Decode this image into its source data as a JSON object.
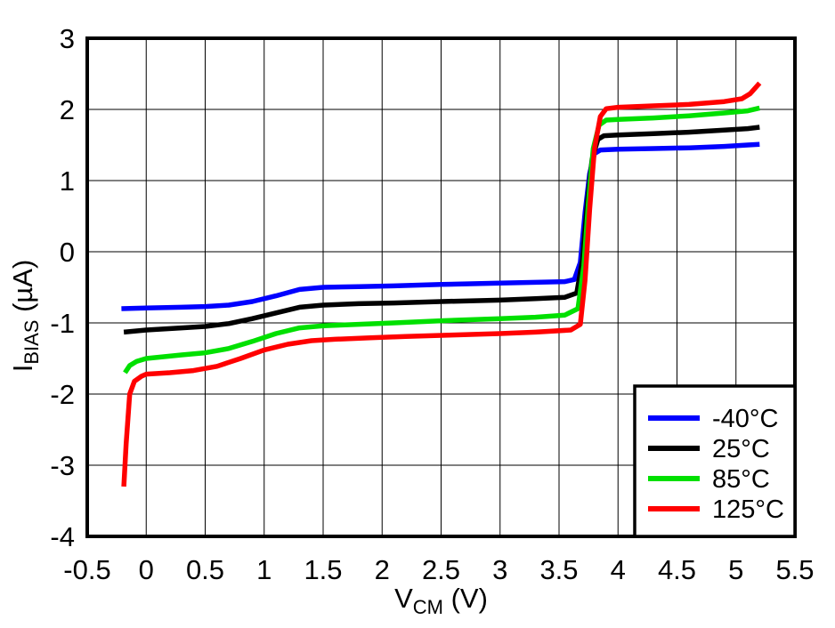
{
  "chart_data": {
    "type": "line",
    "title": "",
    "xlabel": {
      "pre": "V",
      "sub": "CM",
      "post": " (V)"
    },
    "ylabel": {
      "pre": "I",
      "sub": "BIAS",
      "post": " (µA)"
    },
    "xlim": [
      -0.5,
      5.5
    ],
    "ylim": [
      -4,
      3
    ],
    "x_ticks": [
      "-0.5",
      "0",
      "0.5",
      "1",
      "1.5",
      "2",
      "2.5",
      "3",
      "3.5",
      "4",
      "4.5",
      "5",
      "5.5"
    ],
    "y_ticks": [
      "3",
      "2",
      "1",
      "0",
      "-1",
      "-2",
      "-3",
      "-4"
    ],
    "grid": true,
    "legend_position": "bottom-right",
    "axis_color": "#000000",
    "grid_color": "#000000",
    "background_color": "#ffffff",
    "series": [
      {
        "name": "-40°C",
        "color": "#0000ff",
        "points": [
          [
            -0.21,
            -0.8
          ],
          [
            0,
            -0.79
          ],
          [
            0.3,
            -0.78
          ],
          [
            0.5,
            -0.77
          ],
          [
            0.7,
            -0.75
          ],
          [
            0.9,
            -0.7
          ],
          [
            1.1,
            -0.62
          ],
          [
            1.3,
            -0.53
          ],
          [
            1.5,
            -0.5
          ],
          [
            1.8,
            -0.49
          ],
          [
            2.1,
            -0.48
          ],
          [
            2.5,
            -0.46
          ],
          [
            3.0,
            -0.44
          ],
          [
            3.3,
            -0.43
          ],
          [
            3.55,
            -0.42
          ],
          [
            3.63,
            -0.39
          ],
          [
            3.68,
            -0.15
          ],
          [
            3.72,
            0.55
          ],
          [
            3.76,
            1.1
          ],
          [
            3.8,
            1.38
          ],
          [
            3.85,
            1.43
          ],
          [
            4.0,
            1.44
          ],
          [
            4.3,
            1.45
          ],
          [
            4.6,
            1.46
          ],
          [
            4.9,
            1.48
          ],
          [
            5.1,
            1.5
          ],
          [
            5.2,
            1.51
          ]
        ]
      },
      {
        "name": "25°C",
        "color": "#000000",
        "points": [
          [
            -0.19,
            -1.13
          ],
          [
            0,
            -1.1
          ],
          [
            0.3,
            -1.07
          ],
          [
            0.5,
            -1.05
          ],
          [
            0.7,
            -1.01
          ],
          [
            0.9,
            -0.94
          ],
          [
            1.1,
            -0.86
          ],
          [
            1.3,
            -0.78
          ],
          [
            1.5,
            -0.75
          ],
          [
            1.8,
            -0.73
          ],
          [
            2.1,
            -0.72
          ],
          [
            2.5,
            -0.7
          ],
          [
            3.0,
            -0.68
          ],
          [
            3.3,
            -0.66
          ],
          [
            3.55,
            -0.64
          ],
          [
            3.65,
            -0.58
          ],
          [
            3.7,
            -0.1
          ],
          [
            3.74,
            0.7
          ],
          [
            3.78,
            1.3
          ],
          [
            3.83,
            1.58
          ],
          [
            3.88,
            1.63
          ],
          [
            4.0,
            1.64
          ],
          [
            4.3,
            1.66
          ],
          [
            4.6,
            1.68
          ],
          [
            4.9,
            1.71
          ],
          [
            5.1,
            1.73
          ],
          [
            5.2,
            1.75
          ]
        ]
      },
      {
        "name": "85°C",
        "color": "#00e000",
        "points": [
          [
            -0.18,
            -1.7
          ],
          [
            -0.14,
            -1.6
          ],
          [
            -0.08,
            -1.54
          ],
          [
            0,
            -1.5
          ],
          [
            0.3,
            -1.45
          ],
          [
            0.5,
            -1.42
          ],
          [
            0.7,
            -1.36
          ],
          [
            0.9,
            -1.26
          ],
          [
            1.1,
            -1.15
          ],
          [
            1.3,
            -1.07
          ],
          [
            1.5,
            -1.04
          ],
          [
            1.8,
            -1.02
          ],
          [
            2.1,
            -1.0
          ],
          [
            2.5,
            -0.97
          ],
          [
            3.0,
            -0.94
          ],
          [
            3.3,
            -0.92
          ],
          [
            3.55,
            -0.89
          ],
          [
            3.66,
            -0.8
          ],
          [
            3.71,
            -0.2
          ],
          [
            3.75,
            0.7
          ],
          [
            3.79,
            1.45
          ],
          [
            3.84,
            1.78
          ],
          [
            3.9,
            1.85
          ],
          [
            4.0,
            1.86
          ],
          [
            4.3,
            1.88
          ],
          [
            4.6,
            1.91
          ],
          [
            4.9,
            1.95
          ],
          [
            5.1,
            1.98
          ],
          [
            5.2,
            2.02
          ]
        ]
      },
      {
        "name": "125°C",
        "color": "#ff0000",
        "points": [
          [
            -0.19,
            -3.3
          ],
          [
            -0.17,
            -2.7
          ],
          [
            -0.14,
            -2.0
          ],
          [
            -0.1,
            -1.82
          ],
          [
            -0.04,
            -1.75
          ],
          [
            0,
            -1.72
          ],
          [
            0.2,
            -1.7
          ],
          [
            0.4,
            -1.67
          ],
          [
            0.6,
            -1.61
          ],
          [
            0.8,
            -1.5
          ],
          [
            1.0,
            -1.38
          ],
          [
            1.2,
            -1.3
          ],
          [
            1.4,
            -1.25
          ],
          [
            1.6,
            -1.23
          ],
          [
            1.9,
            -1.21
          ],
          [
            2.2,
            -1.19
          ],
          [
            2.6,
            -1.17
          ],
          [
            3.0,
            -1.15
          ],
          [
            3.3,
            -1.13
          ],
          [
            3.6,
            -1.1
          ],
          [
            3.68,
            -1.02
          ],
          [
            3.72,
            -0.4
          ],
          [
            3.76,
            0.6
          ],
          [
            3.8,
            1.45
          ],
          [
            3.85,
            1.9
          ],
          [
            3.9,
            2.01
          ],
          [
            4.0,
            2.03
          ],
          [
            4.3,
            2.05
          ],
          [
            4.6,
            2.07
          ],
          [
            4.9,
            2.11
          ],
          [
            5.05,
            2.15
          ],
          [
            5.12,
            2.22
          ],
          [
            5.2,
            2.37
          ]
        ]
      }
    ]
  }
}
